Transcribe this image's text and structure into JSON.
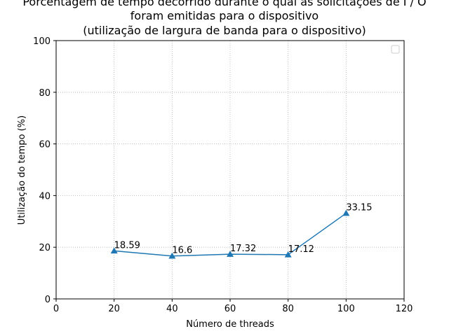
{
  "chart_data": {
    "type": "line",
    "title_lines": [
      "Porcentagem de tempo decorrido durante o qual as solicitações de I / O",
      "foram emitidas para o dispositivo",
      "(utilização de largura de banda para o dispositivo)"
    ],
    "xlabel": "Número de threads",
    "ylabel": "Utilização do tempo (%)",
    "xlim": [
      0,
      120
    ],
    "ylim": [
      0,
      100
    ],
    "xticks": [
      0,
      20,
      40,
      60,
      80,
      100,
      120
    ],
    "yticks": [
      0,
      20,
      40,
      60,
      80,
      100
    ],
    "grid": true,
    "legend": "top-right",
    "series": [
      {
        "marker": "triangle-up",
        "color": "#1f77b4",
        "x": [
          20,
          40,
          60,
          80,
          100
        ],
        "y": [
          18.59,
          16.6,
          17.32,
          17.12,
          33.15
        ],
        "labels": [
          "18.59",
          "16.6",
          "17.32",
          "17.12",
          "33.15"
        ]
      }
    ]
  }
}
